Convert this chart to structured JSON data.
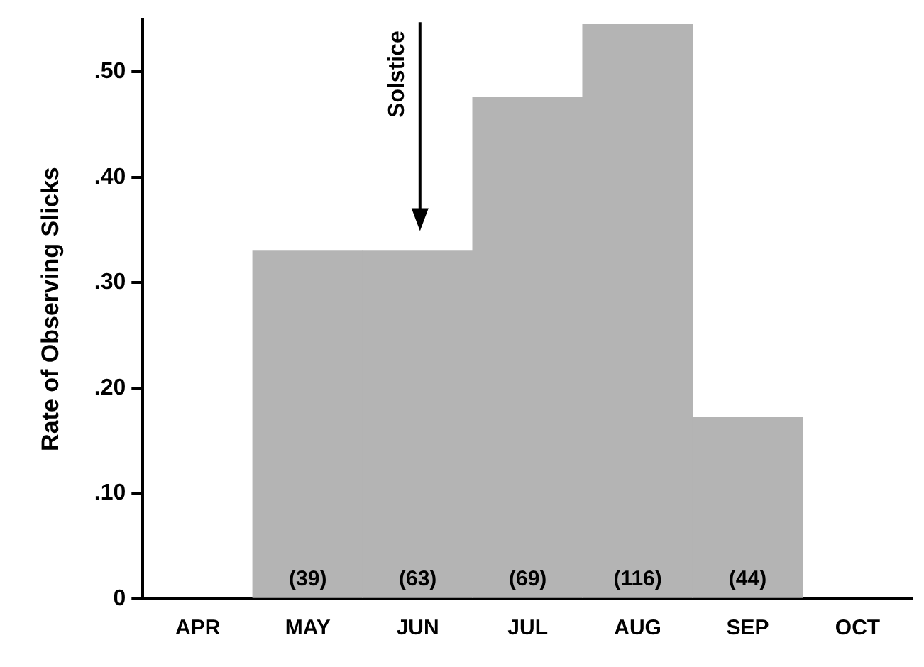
{
  "chart_data": {
    "type": "bar",
    "ylabel": "Rate of Observing Slicks",
    "categories": [
      "APR",
      "MAY",
      "JUN",
      "JUL",
      "AUG",
      "SEP",
      "OCT"
    ],
    "values": [
      null,
      0.33,
      0.33,
      0.476,
      0.545,
      0.172,
      null
    ],
    "color": "#b4b4b4",
    "ylim": [
      0,
      0.55
    ],
    "yticks": [
      0,
      {
        "value": 0.1,
        "label": ".10"
      },
      {
        "value": 0.2,
        "label": ".20"
      },
      {
        "value": 0.3,
        "label": ".30"
      },
      {
        "value": 0.4,
        "label": ".40"
      },
      {
        "value": 0.5,
        "label": ".50"
      }
    ],
    "annotations": [
      "(39)",
      "(63)",
      "(69)",
      "(116)",
      "(44)",
      "Solstice"
    ]
  }
}
